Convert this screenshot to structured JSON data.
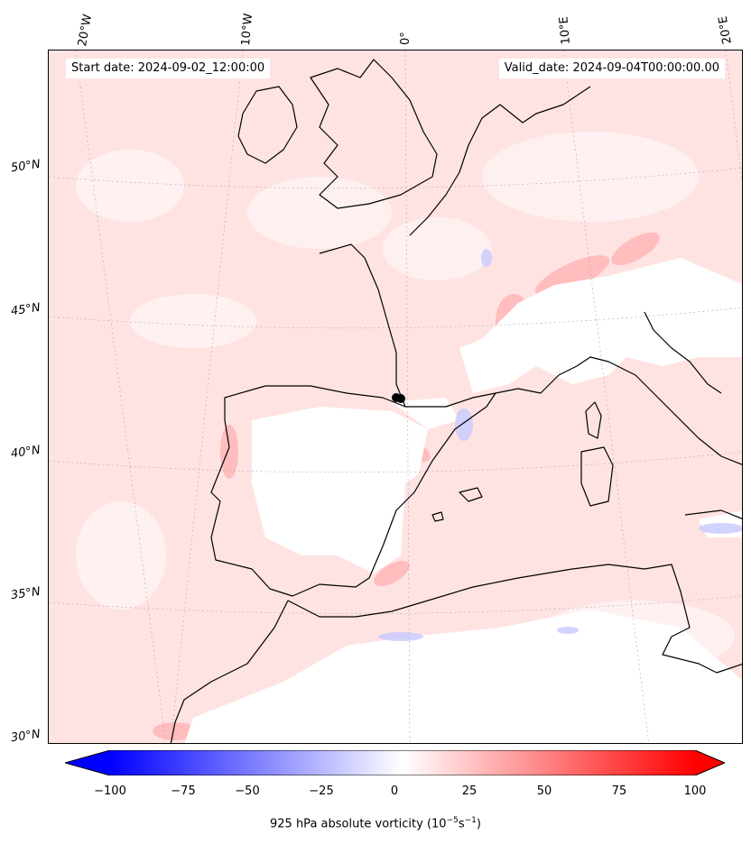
{
  "start_date": "Start date: 2024-09-02_12:00:00",
  "valid_date": "Valid_date: 2024-09-04T00:00:00.00",
  "lon_labels": [
    "20°W",
    "10°W",
    "0°",
    "10°E",
    "20°E"
  ],
  "lat_labels": [
    "50°N",
    "45°N",
    "40°N",
    "35°N",
    "30°N"
  ],
  "colorbar": {
    "ticks": [
      "−100",
      "−75",
      "−50",
      "−25",
      "0",
      "25",
      "50",
      "75",
      "100"
    ],
    "min": -100,
    "max": 100,
    "extend": "both",
    "cmap": "bwr",
    "label_prefix": "925 hPa absolute vorticity (10",
    "label_exp1": "−5",
    "label_mid": "s",
    "label_exp2": "−1",
    "label_suffix": ")"
  },
  "colors": {
    "negative_max": "#0000ff",
    "neutral": "#ffffff",
    "positive_max": "#ff0000",
    "background_field": "#ffe6e6",
    "coastline": "#000000"
  },
  "marker": "black dot near 0° longitude, ~42°N"
}
